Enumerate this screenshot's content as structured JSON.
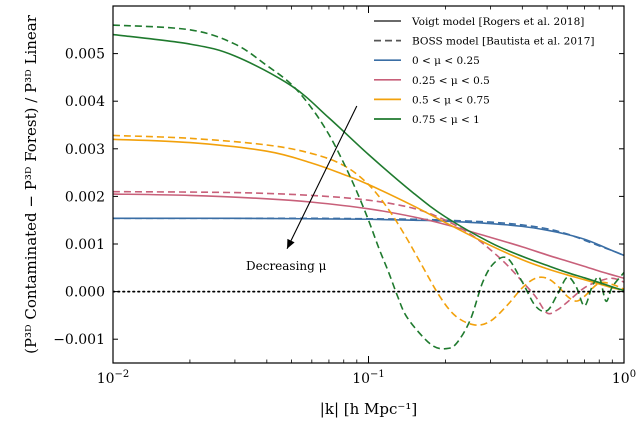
{
  "chart_data": {
    "type": "line",
    "xscale": "log",
    "xlim": [
      0.01,
      1
    ],
    "ylim": [
      -0.0015,
      0.006
    ],
    "xlabel": "|k| [h Mpc⁻¹]",
    "ylabel": "(P³ᴰ Contaminated − P³ᴰ Forest) / P³ᴰ Linear",
    "xticks": [
      {
        "value": 0.01,
        "base": "10",
        "exp": "−2"
      },
      {
        "value": 0.1,
        "base": "10",
        "exp": "−1"
      },
      {
        "value": 1,
        "base": "10",
        "exp": "0"
      }
    ],
    "yticks": [
      {
        "value": -0.001,
        "label": "−0.001"
      },
      {
        "value": 0.0,
        "label": "0.000"
      },
      {
        "value": 0.001,
        "label": "0.001"
      },
      {
        "value": 0.002,
        "label": "0.002"
      },
      {
        "value": 0.003,
        "label": "0.003"
      },
      {
        "value": 0.004,
        "label": "0.004"
      },
      {
        "value": 0.005,
        "label": "0.005"
      }
    ],
    "grid": false,
    "legend_position": "top-right",
    "legend": [
      {
        "label": "Voigt model [Rogers et al. 2018]",
        "color": "#555555",
        "style": "solid"
      },
      {
        "label": "BOSS model [Bautista et al. 2017]",
        "color": "#555555",
        "style": "dashed"
      },
      {
        "label": "0 < μ < 0.25",
        "color": "#3a6ea5",
        "style": "solid"
      },
      {
        "label": "0.25 < μ < 0.5",
        "color": "#c8607a",
        "style": "solid"
      },
      {
        "label": "0.5 < μ < 0.75",
        "color": "#f2a10c",
        "style": "solid"
      },
      {
        "label": "0.75 < μ < 1",
        "color": "#1f7a2e",
        "style": "solid"
      }
    ],
    "series": [
      {
        "color": "#3a6ea5",
        "style": "solid",
        "x": [
          0.01,
          0.03,
          0.06,
          0.1,
          0.15,
          0.2,
          0.3,
          0.4,
          0.5,
          0.6,
          0.7,
          0.8,
          0.9,
          1.0
        ],
        "y": [
          0.00154,
          0.00154,
          0.00153,
          0.00152,
          0.0015,
          0.00148,
          0.00143,
          0.00137,
          0.00129,
          0.0012,
          0.0011,
          0.00098,
          0.00086,
          0.00076
        ]
      },
      {
        "color": "#3a6ea5",
        "style": "dashed",
        "x": [
          0.01,
          0.03,
          0.06,
          0.1,
          0.15,
          0.2,
          0.3,
          0.4,
          0.5,
          0.6,
          0.7,
          0.8,
          0.9,
          1.0
        ],
        "y": [
          0.00154,
          0.00154,
          0.00154,
          0.00153,
          0.00152,
          0.0015,
          0.00146,
          0.0014,
          0.00132,
          0.00121,
          0.00108,
          0.00096,
          0.00086,
          0.00076
        ]
      },
      {
        "color": "#c8607a",
        "style": "solid",
        "x": [
          0.01,
          0.02,
          0.04,
          0.06,
          0.1,
          0.15,
          0.2,
          0.3,
          0.4,
          0.5,
          0.6,
          0.7,
          0.8,
          0.9,
          1.0
        ],
        "y": [
          0.00205,
          0.00202,
          0.00195,
          0.00188,
          0.00174,
          0.00157,
          0.00141,
          0.00114,
          0.00094,
          0.00077,
          0.00064,
          0.00053,
          0.00043,
          0.00035,
          0.00028
        ]
      },
      {
        "color": "#c8607a",
        "style": "dashed",
        "x": [
          0.01,
          0.03,
          0.06,
          0.1,
          0.15,
          0.2,
          0.25,
          0.3,
          0.35,
          0.4,
          0.45,
          0.5,
          0.55,
          0.6,
          0.7,
          0.8,
          0.9,
          1.0
        ],
        "y": [
          0.0021,
          0.00208,
          0.00202,
          0.00192,
          0.00175,
          0.0015,
          0.00121,
          0.00088,
          0.00055,
          0.00021,
          -0.0001,
          -0.00045,
          -0.00038,
          -0.00022,
          8e-05,
          0.00022,
          0.00028,
          0.0002
        ]
      },
      {
        "color": "#f2a10c",
        "style": "solid",
        "x": [
          0.01,
          0.02,
          0.04,
          0.06,
          0.08,
          0.1,
          0.15,
          0.2,
          0.3,
          0.4,
          0.5,
          0.6,
          0.7,
          0.8,
          0.9,
          1.0
        ],
        "y": [
          0.0032,
          0.00313,
          0.00295,
          0.0027,
          0.00246,
          0.00225,
          0.0018,
          0.00145,
          0.00097,
          0.00067,
          0.00048,
          0.00035,
          0.00025,
          0.00016,
          8e-05,
          3e-05
        ]
      },
      {
        "color": "#f2a10c",
        "style": "dashed",
        "x": [
          0.01,
          0.02,
          0.04,
          0.06,
          0.08,
          0.1,
          0.12,
          0.14,
          0.16,
          0.19,
          0.22,
          0.26,
          0.3,
          0.35,
          0.4,
          0.45,
          0.5,
          0.55,
          0.6,
          0.65,
          0.7,
          0.8,
          0.9,
          1.0
        ],
        "y": [
          0.00328,
          0.00322,
          0.00308,
          0.0029,
          0.00265,
          0.00225,
          0.00172,
          0.00115,
          0.0006,
          -0.0001,
          -0.00052,
          -0.0007,
          -0.00062,
          -0.00028,
          8e-05,
          0.00028,
          0.00028,
          0.00012,
          -0.0001,
          -0.0002,
          -0.0001,
          0.00018,
          0.00015,
          5e-05
        ]
      },
      {
        "color": "#1f7a2e",
        "style": "solid",
        "x": [
          0.01,
          0.02,
          0.03,
          0.05,
          0.07,
          0.1,
          0.15,
          0.2,
          0.3,
          0.4,
          0.5,
          0.6,
          0.7,
          0.8,
          0.9,
          1.0
        ],
        "y": [
          0.0054,
          0.0052,
          0.00495,
          0.00432,
          0.00365,
          0.00288,
          0.00207,
          0.00157,
          0.00103,
          0.00074,
          0.00055,
          0.0004,
          0.00029,
          0.00019,
          0.0001,
          2e-05
        ]
      },
      {
        "color": "#1f7a2e",
        "style": "dashed",
        "x": [
          0.01,
          0.02,
          0.03,
          0.04,
          0.05,
          0.06,
          0.07,
          0.08,
          0.09,
          0.1,
          0.11,
          0.12,
          0.13,
          0.14,
          0.16,
          0.18,
          0.2,
          0.22,
          0.25,
          0.28,
          0.31,
          0.35,
          0.4,
          0.45,
          0.5,
          0.55,
          0.6,
          0.65,
          0.7,
          0.75,
          0.8,
          0.85,
          0.9,
          1.0
        ],
        "y": [
          0.0056,
          0.0055,
          0.0052,
          0.00475,
          0.00435,
          0.00385,
          0.0033,
          0.0027,
          0.0021,
          0.0015,
          0.0009,
          0.0004,
          -0.0001,
          -0.0005,
          -0.0009,
          -0.00115,
          -0.0012,
          -0.0011,
          -0.0006,
          0.0002,
          0.0006,
          0.0007,
          0.0002,
          -0.0003,
          -0.0004,
          -5e-05,
          0.0003,
          0.0001,
          -0.0003,
          0.0001,
          0.0003,
          -0.0002,
          0.0001,
          0.0004
        ]
      },
      {
        "color": "#000000",
        "style": "dotted",
        "x": [
          0.01,
          1.0
        ],
        "y": [
          0.0,
          0.0
        ]
      }
    ],
    "annotation": {
      "text": "Decreasing μ",
      "arrow_from": {
        "x": 0.09,
        "y": 0.0039
      },
      "arrow_to": {
        "x": 0.048,
        "y": 0.0009
      }
    }
  }
}
